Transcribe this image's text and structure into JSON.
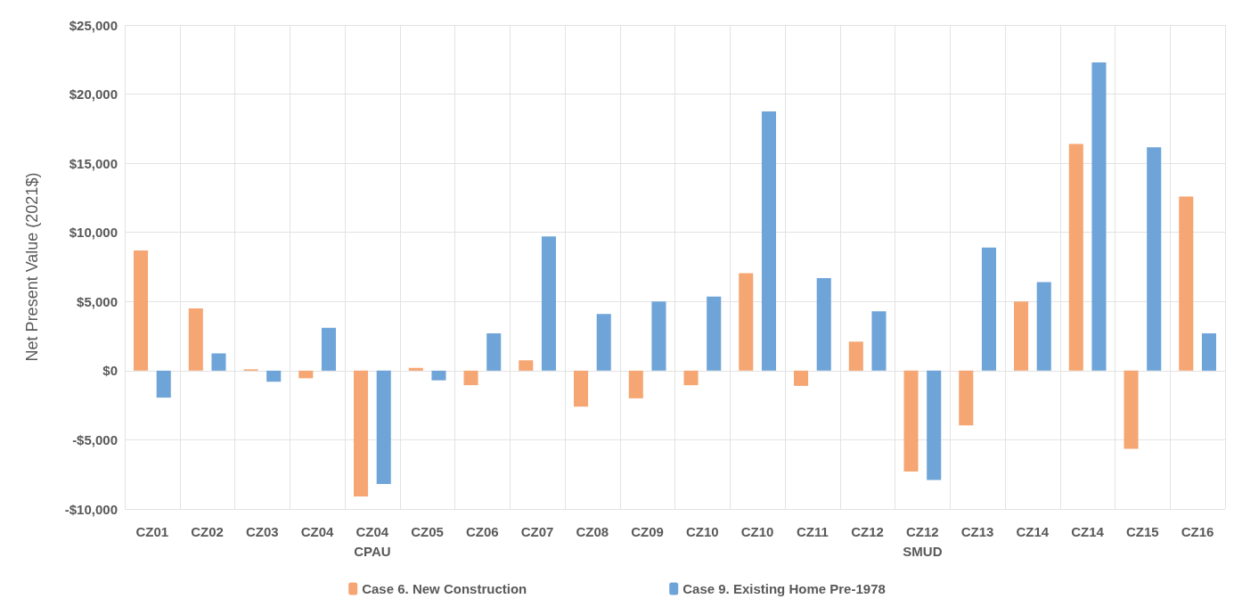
{
  "chart_data": {
    "type": "bar",
    "ylabel": "Net Present Value (2021$)",
    "categories": [
      "CZ01",
      "CZ02",
      "CZ03",
      "CZ04",
      "CZ04\nCPAU",
      "CZ05",
      "CZ06",
      "CZ07",
      "CZ08",
      "CZ09",
      "CZ10",
      "CZ10",
      "CZ11",
      "CZ12",
      "CZ12\nSMUD",
      "CZ13",
      "CZ14",
      "CZ14",
      "CZ15",
      "CZ16"
    ],
    "series": [
      {
        "name": "Case 6. New Construction",
        "color": "#f5a673",
        "values": [
          8700,
          4500,
          100,
          -550,
          -9100,
          200,
          -1050,
          750,
          -2600,
          -2000,
          -1050,
          7050,
          -1100,
          2100,
          -7300,
          -3950,
          5000,
          16400,
          -5650,
          12600
        ]
      },
      {
        "name": "Case 9. Existing Home Pre-1978",
        "color": "#6ea4d8",
        "values": [
          -1950,
          1250,
          -800,
          3100,
          -8200,
          -700,
          2700,
          9700,
          4100,
          5000,
          5350,
          18750,
          6700,
          4300,
          -7900,
          8900,
          6400,
          22300,
          16150,
          2700
        ]
      }
    ],
    "ylim": [
      -10000,
      25000
    ],
    "yticks": [
      {
        "value": -10000,
        "label": "-$10,000"
      },
      {
        "value": -5000,
        "label": "-$5,000"
      },
      {
        "value": 0,
        "label": "$0"
      },
      {
        "value": 5000,
        "label": "$5,000"
      },
      {
        "value": 10000,
        "label": "$10,000"
      },
      {
        "value": 15000,
        "label": "$15,000"
      },
      {
        "value": 20000,
        "label": "$20,000"
      },
      {
        "value": 25000,
        "label": "$25,000"
      }
    ],
    "grid": true,
    "legend": "bottom"
  }
}
